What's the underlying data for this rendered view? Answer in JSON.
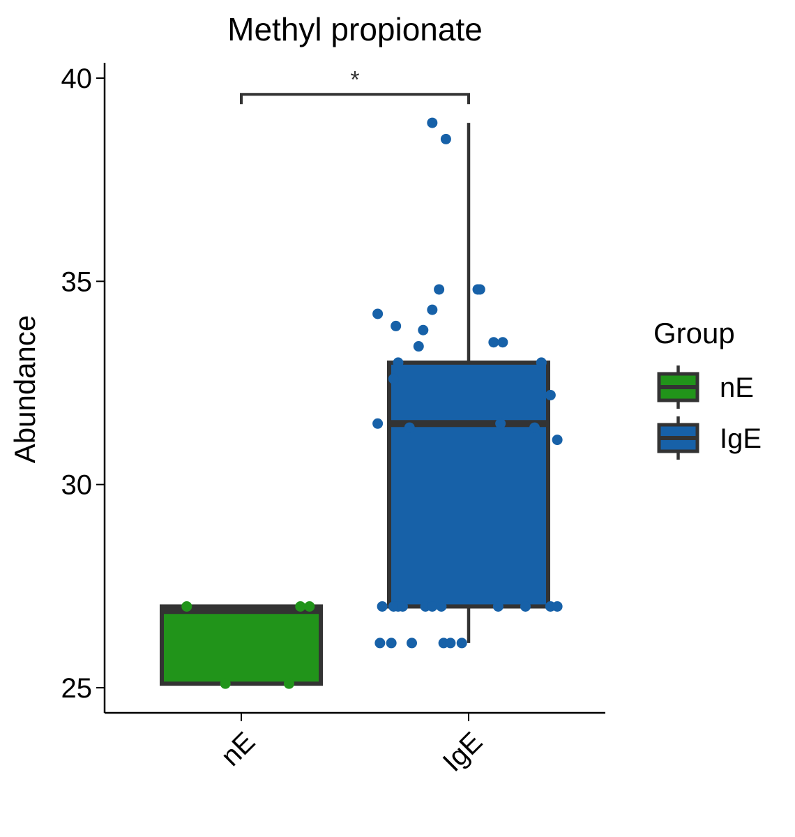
{
  "chart_data": {
    "type": "boxplot",
    "title": "Methyl propionate",
    "ylabel": "Abundance",
    "xlabel": "",
    "ylim": [
      24.4,
      40.4
    ],
    "yticks": [
      25,
      30,
      35,
      40
    ],
    "categories": [
      "nE",
      "IgE"
    ],
    "legend": {
      "title": "Group",
      "placement": "right",
      "entries": [
        "nE",
        "IgE"
      ]
    },
    "colors": {
      "nE": "#21941a",
      "IgE": "#1761a8"
    },
    "boxes": [
      {
        "group": "nE",
        "q1": 25.1,
        "median": 26.9,
        "q3": 27.0,
        "lower_whisker": 25.1,
        "upper_whisker": 27.0
      },
      {
        "group": "IgE",
        "q1": 27.0,
        "median": 31.5,
        "q3": 33.0,
        "lower_whisker": 26.1,
        "upper_whisker": 38.9
      }
    ],
    "points": [
      {
        "group": "nE",
        "jitter": -0.24,
        "value": 27.0
      },
      {
        "group": "nE",
        "jitter": 0.26,
        "value": 27.0
      },
      {
        "group": "nE",
        "jitter": 0.3,
        "value": 27.0
      },
      {
        "group": "nE",
        "jitter": -0.07,
        "value": 25.1
      },
      {
        "group": "nE",
        "jitter": 0.21,
        "value": 25.1
      },
      {
        "group": "IgE",
        "jitter": -0.4,
        "value": 34.2
      },
      {
        "group": "IgE",
        "jitter": -0.32,
        "value": 33.9
      },
      {
        "group": "IgE",
        "jitter": -0.2,
        "value": 33.8
      },
      {
        "group": "IgE",
        "jitter": -0.22,
        "value": 33.4
      },
      {
        "group": "IgE",
        "jitter": -0.16,
        "value": 34.3
      },
      {
        "group": "IgE",
        "jitter": -0.13,
        "value": 34.8
      },
      {
        "group": "IgE",
        "jitter": 0.04,
        "value": 34.8
      },
      {
        "group": "IgE",
        "jitter": 0.05,
        "value": 34.8
      },
      {
        "group": "IgE",
        "jitter": 0.11,
        "value": 33.5
      },
      {
        "group": "IgE",
        "jitter": 0.15,
        "value": 33.5
      },
      {
        "group": "IgE",
        "jitter": -0.16,
        "value": 38.9
      },
      {
        "group": "IgE",
        "jitter": -0.1,
        "value": 38.5
      },
      {
        "group": "IgE",
        "jitter": -0.31,
        "value": 33.0
      },
      {
        "group": "IgE",
        "jitter": 0.32,
        "value": 33.0
      },
      {
        "group": "IgE",
        "jitter": -0.33,
        "value": 32.6
      },
      {
        "group": "IgE",
        "jitter": 0.36,
        "value": 32.2
      },
      {
        "group": "IgE",
        "jitter": -0.4,
        "value": 31.5
      },
      {
        "group": "IgE",
        "jitter": -0.26,
        "value": 31.4
      },
      {
        "group": "IgE",
        "jitter": 0.14,
        "value": 31.5
      },
      {
        "group": "IgE",
        "jitter": 0.29,
        "value": 31.4
      },
      {
        "group": "IgE",
        "jitter": 0.39,
        "value": 31.1
      },
      {
        "group": "IgE",
        "jitter": -0.38,
        "value": 27.0
      },
      {
        "group": "IgE",
        "jitter": -0.33,
        "value": 27.0
      },
      {
        "group": "IgE",
        "jitter": -0.31,
        "value": 27.0
      },
      {
        "group": "IgE",
        "jitter": -0.29,
        "value": 27.0
      },
      {
        "group": "IgE",
        "jitter": -0.19,
        "value": 27.0
      },
      {
        "group": "IgE",
        "jitter": -0.16,
        "value": 27.0
      },
      {
        "group": "IgE",
        "jitter": -0.12,
        "value": 27.0
      },
      {
        "group": "IgE",
        "jitter": 0.13,
        "value": 27.0
      },
      {
        "group": "IgE",
        "jitter": 0.25,
        "value": 27.0
      },
      {
        "group": "IgE",
        "jitter": 0.36,
        "value": 27.0
      },
      {
        "group": "IgE",
        "jitter": 0.39,
        "value": 27.0
      },
      {
        "group": "IgE",
        "jitter": -0.39,
        "value": 26.1
      },
      {
        "group": "IgE",
        "jitter": -0.34,
        "value": 26.1
      },
      {
        "group": "IgE",
        "jitter": -0.25,
        "value": 26.1
      },
      {
        "group": "IgE",
        "jitter": -0.11,
        "value": 26.1
      },
      {
        "group": "IgE",
        "jitter": -0.08,
        "value": 26.1
      },
      {
        "group": "IgE",
        "jitter": -0.03,
        "value": 26.1
      }
    ],
    "annotations": [
      {
        "type": "significance",
        "from": "nE",
        "to": "IgE",
        "label": "*",
        "value": 39.6
      }
    ]
  }
}
